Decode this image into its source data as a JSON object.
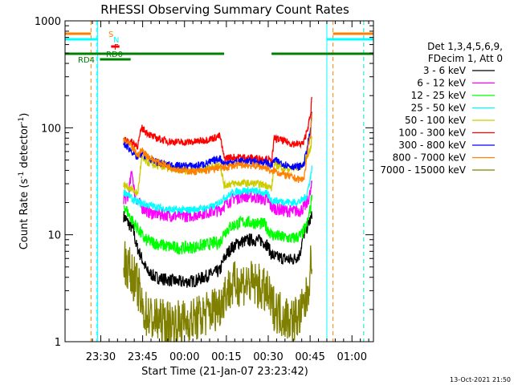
{
  "chart_data": {
    "type": "line",
    "title": "RHESSI Observing Summary Count Rates",
    "xlabel": "Start Time (21-Jan-07 23:23:42)",
    "ylabel_main": "Count Rate (s",
    "ylabel_sup1": "-1",
    "ylabel_mid": " detector",
    "ylabel_sup2": "-1",
    "ylabel_end": ")",
    "y_scale": "log",
    "ylim": [
      1,
      1000
    ],
    "xlim_minutes": [
      -6.5,
      104
    ],
    "x_ticks": [
      {
        "label": "23:30",
        "t": 6.3
      },
      {
        "label": "23:45",
        "t": 21.3
      },
      {
        "label": "00:00",
        "t": 36.3
      },
      {
        "label": "00:15",
        "t": 51.3
      },
      {
        "label": "00:30",
        "t": 66.3
      },
      {
        "label": "00:45",
        "t": 81.3
      },
      {
        "label": "01:00",
        "t": 96.3
      }
    ],
    "y_ticks": [
      {
        "label": "1",
        "v": 1
      },
      {
        "label": "10",
        "v": 10
      },
      {
        "label": "100",
        "v": 100
      },
      {
        "label": "1000",
        "v": 1000
      }
    ],
    "legend_header": [
      "Det 1,3,4,5,6,9,",
      "FDecim 1, Att 0"
    ],
    "legend_placement": "right",
    "series": [
      {
        "name": "3 - 6 keV",
        "color": "#000000",
        "points": [
          [
            14.5,
            15
          ],
          [
            16,
            13
          ],
          [
            18,
            11
          ],
          [
            19,
            8
          ],
          [
            21,
            6
          ],
          [
            23,
            4.5
          ],
          [
            26,
            4
          ],
          [
            30,
            3.8
          ],
          [
            35,
            3.6
          ],
          [
            40,
            3.7
          ],
          [
            45,
            4.2
          ],
          [
            49,
            4.6
          ],
          [
            50.5,
            6
          ],
          [
            53,
            7.5
          ],
          [
            56,
            8.5
          ],
          [
            60,
            9
          ],
          [
            64,
            8.8
          ],
          [
            66,
            8
          ],
          [
            67.5,
            6.5
          ],
          [
            69,
            6.2
          ],
          [
            72,
            6
          ],
          [
            75,
            5.8
          ],
          [
            77.5,
            6.5
          ],
          [
            79,
            10
          ],
          [
            81.5,
            14
          ],
          [
            82,
            15
          ]
        ]
      },
      {
        "name": "6 - 12 keV",
        "color": "#ff00ff",
        "points": [
          [
            14.5,
            22
          ],
          [
            16,
            22
          ],
          [
            17.5,
            40
          ],
          [
            18.5,
            23
          ],
          [
            21,
            18
          ],
          [
            24,
            16
          ],
          [
            28,
            15.5
          ],
          [
            33,
            15
          ],
          [
            38,
            15
          ],
          [
            43,
            16
          ],
          [
            49,
            17
          ],
          [
            50.5,
            19
          ],
          [
            54,
            22
          ],
          [
            58,
            23
          ],
          [
            62,
            22.5
          ],
          [
            66,
            21
          ],
          [
            67.5,
            18
          ],
          [
            71,
            17
          ],
          [
            75,
            16.5
          ],
          [
            78,
            17
          ],
          [
            80,
            19
          ],
          [
            81.5,
            25
          ],
          [
            82,
            30
          ]
        ]
      },
      {
        "name": "12 - 25 keV",
        "color": "#00ff00",
        "points": [
          [
            14.5,
            19
          ],
          [
            16,
            16
          ],
          [
            18,
            13
          ],
          [
            20,
            11
          ],
          [
            22,
            9
          ],
          [
            26,
            8.3
          ],
          [
            30,
            7.8
          ],
          [
            35,
            7.5
          ],
          [
            40,
            7.7
          ],
          [
            45,
            8.2
          ],
          [
            49,
            8.5
          ],
          [
            50.5,
            10.5
          ],
          [
            53,
            12
          ],
          [
            57,
            13.2
          ],
          [
            61,
            13
          ],
          [
            65,
            12.5
          ],
          [
            67.5,
            10
          ],
          [
            71,
            9.5
          ],
          [
            75,
            9.2
          ],
          [
            78,
            9.8
          ],
          [
            80,
            12
          ],
          [
            81.5,
            18
          ],
          [
            82,
            25
          ]
        ]
      },
      {
        "name": "25 - 50 keV",
        "color": "#00ffff",
        "points": [
          [
            14.5,
            25
          ],
          [
            16,
            24
          ],
          [
            18,
            21
          ],
          [
            20,
            20
          ],
          [
            23,
            19
          ],
          [
            27,
            18
          ],
          [
            32,
            17
          ],
          [
            37,
            17
          ],
          [
            42,
            17.5
          ],
          [
            47,
            18.5
          ],
          [
            50.5,
            22
          ],
          [
            54,
            25
          ],
          [
            58,
            26
          ],
          [
            62,
            25.5
          ],
          [
            66,
            24
          ],
          [
            67.5,
            21
          ],
          [
            71,
            20.5
          ],
          [
            75,
            20
          ],
          [
            78,
            20.5
          ],
          [
            80,
            23
          ],
          [
            81.5,
            35
          ],
          [
            82,
            45
          ]
        ]
      },
      {
        "name": "50 - 100 keV",
        "color": "#cccc00",
        "points": [
          [
            14.5,
            29
          ],
          [
            16,
            28
          ],
          [
            18,
            26
          ],
          [
            19.5,
            24
          ],
          [
            21,
            52
          ],
          [
            22,
            49
          ],
          [
            25,
            45
          ],
          [
            30,
            42
          ],
          [
            35,
            40
          ],
          [
            40,
            40
          ],
          [
            45,
            42
          ],
          [
            49,
            46
          ],
          [
            50.5,
            29
          ],
          [
            53,
            30
          ],
          [
            57,
            30.5
          ],
          [
            62,
            30
          ],
          [
            66,
            29
          ],
          [
            67.5,
            27
          ],
          [
            68.5,
            45
          ],
          [
            70,
            44
          ],
          [
            74,
            41
          ],
          [
            77,
            42
          ],
          [
            79,
            46
          ],
          [
            81.5,
            65
          ],
          [
            82,
            85
          ]
        ]
      },
      {
        "name": "100 - 300 keV",
        "color": "#ff0000",
        "points": [
          [
            14.5,
            77
          ],
          [
            16,
            76
          ],
          [
            18,
            72
          ],
          [
            19.5,
            68
          ],
          [
            21,
            100
          ],
          [
            22,
            94
          ],
          [
            25,
            82
          ],
          [
            30,
            75
          ],
          [
            35,
            73
          ],
          [
            40,
            74
          ],
          [
            45,
            78
          ],
          [
            49,
            84
          ],
          [
            50.5,
            52
          ],
          [
            53,
            53
          ],
          [
            57,
            53
          ],
          [
            62,
            52
          ],
          [
            66,
            51
          ],
          [
            67.5,
            48
          ],
          [
            68.5,
            80
          ],
          [
            70,
            78
          ],
          [
            74,
            72
          ],
          [
            77,
            70
          ],
          [
            79,
            72
          ],
          [
            81.5,
            130
          ],
          [
            82,
            210
          ]
        ]
      },
      {
        "name": "300 - 800 keV",
        "color": "#0000ff",
        "points": [
          [
            14.5,
            70
          ],
          [
            16,
            66
          ],
          [
            18,
            58
          ],
          [
            19.5,
            52
          ],
          [
            21,
            58
          ],
          [
            22,
            55
          ],
          [
            25,
            49
          ],
          [
            30,
            45
          ],
          [
            35,
            44
          ],
          [
            40,
            44
          ],
          [
            45,
            47
          ],
          [
            49,
            52
          ],
          [
            50.5,
            46
          ],
          [
            53,
            48
          ],
          [
            57,
            49
          ],
          [
            62,
            48
          ],
          [
            66,
            47
          ],
          [
            67.5,
            44
          ],
          [
            68.5,
            50
          ],
          [
            70,
            48
          ],
          [
            74,
            44
          ],
          [
            77,
            43
          ],
          [
            79,
            45
          ],
          [
            81.5,
            95
          ],
          [
            82,
            150
          ]
        ]
      },
      {
        "name": "800 - 7000 keV",
        "color": "#ff8000",
        "points": [
          [
            14.5,
            76
          ],
          [
            16,
            72
          ],
          [
            18,
            63
          ],
          [
            19.5,
            55
          ],
          [
            21,
            62
          ],
          [
            22,
            58
          ],
          [
            25,
            50
          ],
          [
            30,
            44
          ],
          [
            35,
            40
          ],
          [
            40,
            39
          ],
          [
            45,
            40
          ],
          [
            49,
            43
          ],
          [
            50.5,
            42
          ],
          [
            53,
            44
          ],
          [
            57,
            45
          ],
          [
            62,
            44
          ],
          [
            66,
            42
          ],
          [
            67.5,
            38
          ],
          [
            68.5,
            40
          ],
          [
            70,
            38
          ],
          [
            74,
            35
          ],
          [
            77,
            33
          ],
          [
            79,
            33
          ],
          [
            81.5,
            90
          ],
          [
            82,
            140
          ]
        ]
      },
      {
        "name": "7000 - 15000 keV",
        "color": "#808000",
        "points": [
          [
            14.5,
            6
          ],
          [
            16,
            5
          ],
          [
            18,
            4
          ],
          [
            20,
            3
          ],
          [
            21,
            2
          ],
          [
            25,
            1.6
          ],
          [
            30,
            1.5
          ],
          [
            35,
            1.5
          ],
          [
            40,
            1.6
          ],
          [
            45,
            1.9
          ],
          [
            49,
            2.2
          ],
          [
            50.5,
            2.8
          ],
          [
            54,
            3.4
          ],
          [
            58,
            3.6
          ],
          [
            62,
            3.4
          ],
          [
            66,
            2.8
          ],
          [
            67.5,
            2.2
          ],
          [
            71,
            1.8
          ],
          [
            75,
            1.6
          ],
          [
            78,
            1.8
          ],
          [
            80,
            2.5
          ],
          [
            81.5,
            5
          ],
          [
            82,
            8
          ]
        ]
      }
    ],
    "flags": [
      {
        "name": "S",
        "color": "#ff8000",
        "segments": [
          [
            -6.5,
            2.8
          ],
          [
            89.5,
            104
          ]
        ]
      },
      {
        "name": "N",
        "color": "#00ffff",
        "segments": [
          [
            -6.5,
            5.2
          ],
          [
            87.3,
            104
          ]
        ]
      },
      {
        "name": "F",
        "color": "#ff0000",
        "segments": [
          [
            10,
            13
          ]
        ]
      },
      {
        "name": "RD0",
        "color": "#008000",
        "segments": [
          [
            -6.5,
            50.5
          ],
          [
            67.5,
            104
          ]
        ]
      },
      {
        "name": "RD4",
        "color": "#008000",
        "segments": [
          [
            6,
            17
          ]
        ]
      }
    ],
    "markers": {
      "cyan_lines": [
        -6.5,
        5.2,
        87.3
      ],
      "orange_dashed": [
        2.8,
        89.5,
        100.5
      ],
      "cyan_dashed": [
        4.8,
        100.5
      ]
    },
    "timestamp": "13-Oct-2021 21:50"
  }
}
